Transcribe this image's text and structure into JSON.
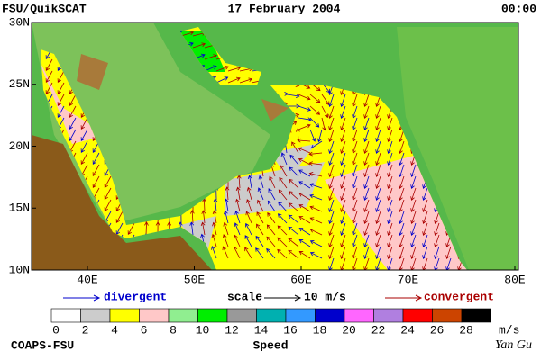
{
  "header": {
    "product": "FSU/QuikSCAT",
    "date": "17 February 2004",
    "time": "00:00"
  },
  "axes": {
    "lat_labels": [
      "30N",
      "25N",
      "20N",
      "15N",
      "10N"
    ],
    "lon_labels": [
      "40E",
      "50E",
      "60E",
      "70E",
      "80E"
    ]
  },
  "legend": {
    "divergent": "divergent",
    "scale": "scale",
    "scale_value": "10 m/s",
    "convergent": "convergent"
  },
  "colorbar": {
    "ticks": [
      0,
      2,
      4,
      6,
      8,
      10,
      12,
      14,
      16,
      18,
      20,
      22,
      24,
      26,
      28
    ],
    "unit": "m/s",
    "title": "Speed",
    "colors": [
      "#ffffff",
      "#cccccc",
      "#ffff00",
      "#ffc8c8",
      "#90ee90",
      "#00ee00",
      "#999999",
      "#00b0b0",
      "#3399ff",
      "#0000cc",
      "#ff66ff",
      "#b07fe0",
      "#ff0000",
      "#cc4400",
      "#000000"
    ]
  },
  "footer": {
    "credit": "COAPS-FSU",
    "author": "Yan Gu"
  }
}
